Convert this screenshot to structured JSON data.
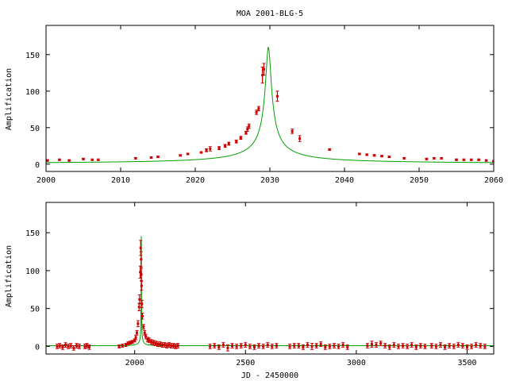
{
  "chart_data": [
    {
      "type": "line",
      "title": "MOA 2001-BLG-5",
      "xlabel": "",
      "ylabel": "Amplification",
      "xlim": [
        2000,
        2060
      ],
      "ylim": [
        -10,
        190
      ],
      "xticks": [
        2000,
        2010,
        2020,
        2030,
        2040,
        2050,
        2060
      ],
      "yticks": [
        0,
        50,
        100,
        150
      ],
      "grid": false,
      "model": {
        "name": "",
        "color": "#00a000",
        "u0": 0.00625,
        "t0": 2029.8,
        "tE": 60
      },
      "series": [
        {
          "name": "",
          "color": "#cc0000",
          "x": [
            2000.2,
            2001.8,
            2003.1,
            2005.0,
            2006.2,
            2007.0,
            2012.0,
            2014.1,
            2015.0,
            2018.0,
            2019.0,
            2020.8,
            2021.5,
            2022.0,
            2023.2,
            2024.0,
            2024.5,
            2025.5,
            2026.1,
            2026.8,
            2027.0,
            2027.2,
            2028.2,
            2028.5,
            2029.0,
            2029.2,
            2031.0,
            2033.0,
            2034.0,
            2038.0,
            2042.0,
            2043.0,
            2044.0,
            2045.0,
            2046.0,
            2048.0,
            2051.0,
            2052.0,
            2053.0,
            2055.0,
            2056.0,
            2057.0,
            2058.0,
            2059.0,
            2060.0
          ],
          "y": [
            5,
            6,
            5,
            7,
            6,
            6,
            8,
            9,
            10,
            12,
            14,
            16,
            19,
            21,
            22,
            25,
            28,
            31,
            36,
            43,
            48,
            52,
            71,
            76,
            122,
            130,
            93,
            45,
            35,
            20,
            14,
            13,
            12,
            11,
            10,
            8,
            7,
            8,
            8,
            6,
            6,
            6,
            6,
            5,
            4
          ],
          "err": [
            1,
            1,
            1,
            1,
            1,
            1,
            1,
            1,
            1,
            1,
            1,
            1,
            2,
            3,
            2,
            2,
            2,
            2,
            2,
            2,
            3,
            3,
            3,
            3,
            11,
            8,
            7,
            3,
            4,
            1,
            1,
            1,
            1,
            1,
            1,
            1,
            1,
            1,
            1,
            1,
            1,
            1,
            1,
            1,
            1
          ]
        }
      ]
    },
    {
      "type": "line",
      "title": "",
      "xlabel": "JD - 2450000",
      "ylabel": "Amplification",
      "xlim": [
        1600,
        3620
      ],
      "ylim": [
        -10,
        190
      ],
      "xticks": [
        2000,
        2500,
        3000,
        3500
      ],
      "yticks": [
        0,
        50,
        100,
        150
      ],
      "grid": false,
      "model": {
        "name": "",
        "color": "#00a000",
        "u0": 0.00625,
        "t0": 2029.8,
        "tE": 60
      },
      "series": [
        {
          "name": "",
          "color": "#cc0000",
          "x": [
            1650,
            1662,
            1675,
            1688,
            1700,
            1712,
            1725,
            1738,
            1750,
            1775,
            1785,
            1795,
            1930,
            1945,
            1960,
            1970,
            1980,
            1990,
            2000,
            2005,
            2010,
            2015,
            2020,
            2022,
            2025,
            2027,
            2029,
            2030,
            2031,
            2033,
            2035,
            2040,
            2045,
            2050,
            2058,
            2066,
            2075,
            2085,
            2095,
            2105,
            2115,
            2125,
            2135,
            2145,
            2155,
            2165,
            2175,
            2185,
            2195,
            2340,
            2360,
            2380,
            2400,
            2420,
            2440,
            2460,
            2480,
            2500,
            2520,
            2540,
            2560,
            2580,
            2600,
            2620,
            2640,
            2700,
            2720,
            2740,
            2760,
            2780,
            2800,
            2820,
            2840,
            2860,
            2880,
            2900,
            2920,
            2940,
            2960,
            3050,
            3070,
            3090,
            3110,
            3130,
            3150,
            3170,
            3190,
            3210,
            3230,
            3250,
            3270,
            3290,
            3310,
            3340,
            3360,
            3380,
            3400,
            3420,
            3440,
            3460,
            3480,
            3500,
            3520,
            3540,
            3560,
            3580
          ],
          "y": [
            0,
            1,
            -1,
            2,
            0,
            1,
            -2,
            1,
            0,
            0,
            1,
            -1,
            0,
            1,
            2,
            4,
            5,
            6,
            8,
            12,
            18,
            30,
            52,
            62,
            98,
            130,
            115,
            95,
            80,
            56,
            40,
            26,
            18,
            13,
            9,
            8,
            6,
            5,
            4,
            3,
            3,
            2,
            2,
            1,
            2,
            1,
            1,
            0,
            1,
            0,
            1,
            -1,
            2,
            -2,
            1,
            0,
            1,
            2,
            0,
            -1,
            1,
            0,
            2,
            0,
            1,
            0,
            1,
            1,
            -1,
            2,
            0,
            1,
            3,
            -1,
            0,
            1,
            0,
            2,
            -1,
            1,
            3,
            2,
            4,
            1,
            -1,
            2,
            0,
            1,
            0,
            2,
            -1,
            1,
            0,
            1,
            0,
            2,
            -1,
            1,
            0,
            2,
            1,
            -1,
            0,
            2,
            1,
            0
          ],
          "err": [
            3,
            3,
            3,
            3,
            3,
            3,
            3,
            3,
            3,
            3,
            3,
            3,
            2,
            2,
            2,
            2,
            2,
            2,
            2,
            3,
            3,
            4,
            5,
            6,
            8,
            10,
            10,
            8,
            6,
            5,
            4,
            3,
            3,
            3,
            3,
            3,
            3,
            3,
            3,
            3,
            3,
            3,
            3,
            3,
            3,
            3,
            3,
            3,
            3,
            3,
            3,
            3,
            3,
            4,
            3,
            3,
            3,
            3,
            3,
            3,
            3,
            3,
            3,
            3,
            3,
            3,
            3,
            3,
            3,
            3,
            4,
            3,
            3,
            3,
            3,
            3,
            3,
            3,
            3,
            3,
            4,
            3,
            3,
            3,
            3,
            3,
            3,
            3,
            3,
            3,
            3,
            3,
            3,
            3,
            3,
            3,
            3,
            3,
            3,
            3,
            3,
            3,
            3,
            3,
            3,
            3
          ]
        }
      ]
    }
  ]
}
